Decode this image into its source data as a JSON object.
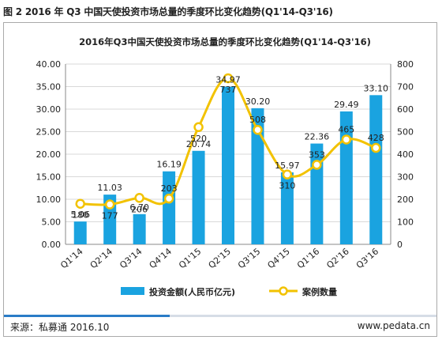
{
  "figure_caption": "图 2 2016 年 Q3 中国天使投资市场总量的季度环比变化趋势(Q1'14-Q3'16)",
  "footer": {
    "source": "来源：私募通 2016.10",
    "site": "www.pedata.cn"
  },
  "colors": {
    "bar": "#1aa3e0",
    "line": "#f2c200",
    "grid": "#d9d9d9",
    "text": "#222222"
  },
  "chart_data": {
    "type": "bar",
    "title": "2016年Q3中国天使投资市场总量的季度环比变化趋势(Q1'14-Q3'16)",
    "categories": [
      "Q1'14",
      "Q2'14",
      "Q3'14",
      "Q4'14",
      "Q1'15",
      "Q2'15",
      "Q3'15",
      "Q4'15",
      "Q1'16",
      "Q2'16",
      "Q3'16"
    ],
    "series": [
      {
        "name": "投资金额(人民币亿元)",
        "type": "bar",
        "axis": "left",
        "values": [
          5.06,
          11.03,
          6.7,
          16.19,
          20.74,
          34.97,
          30.2,
          15.97,
          22.36,
          29.49,
          33.1
        ],
        "labels": [
          "5.06",
          "11.03",
          "6.70",
          "16.19",
          "20.74",
          "34.97",
          "30.20",
          "15.97",
          "22.36",
          "29.49",
          "33.10"
        ]
      },
      {
        "name": "案例数量",
        "type": "line",
        "axis": "right",
        "values": [
          180,
          177,
          206,
          203,
          520,
          737,
          508,
          310,
          353,
          465,
          428
        ],
        "labels": [
          "180",
          "177",
          "206",
          "203",
          "520",
          "737",
          "508",
          "310",
          "353",
          "465",
          "428"
        ]
      }
    ],
    "y_left": {
      "min": 0,
      "max": 40,
      "ticks": [
        "0.00",
        "5.00",
        "10.00",
        "15.00",
        "20.00",
        "25.00",
        "30.00",
        "35.00",
        "40.00"
      ]
    },
    "y_right": {
      "min": 0,
      "max": 800,
      "ticks": [
        "0",
        "100",
        "200",
        "300",
        "400",
        "500",
        "600",
        "700",
        "800"
      ]
    },
    "grid": true,
    "legend_position": "bottom"
  }
}
